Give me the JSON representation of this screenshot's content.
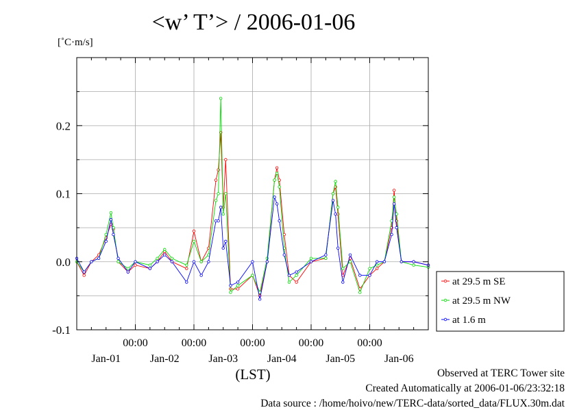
{
  "title": "<w’ T’> / 2006-01-06",
  "unit_label": "[˚C·m/s]",
  "footer": {
    "line1": "Observed at TERC Tower site",
    "line2": "Created Automatically at 2006-01-06/23:32:18",
    "line3": "Data source : /home/hoivo/new/TERC-data/sorted_data/FLUX.30m.dat"
  },
  "colors": {
    "series1": "#ff0000",
    "series2": "#00dd00",
    "series3": "#0000ff"
  },
  "chart_data": {
    "type": "line",
    "title": "<w’ T’> / 2006-01-06",
    "ylabel": "[˚C·m/s]",
    "xlabel": "(LST)",
    "xlim": [
      "2006-01-01 00:00",
      "2006-01-07 00:00"
    ],
    "ylim": [
      -0.1,
      0.3
    ],
    "y_ticks": [
      -0.1,
      0.0,
      0.1,
      0.2
    ],
    "y_tick_labels": [
      "-0.1",
      "0.0",
      "0.1",
      "0.2"
    ],
    "x_time_labels": [
      "00:00",
      "00:00",
      "00:00",
      "00:00",
      "00:00"
    ],
    "x_time_positions": [
      "2006-01-02 00:00",
      "2006-01-03 00:00",
      "2006-01-04 00:00",
      "2006-01-05 00:00",
      "2006-01-06 00:00"
    ],
    "x_date_labels": [
      "Jan-01",
      "Jan-02",
      "Jan-03",
      "Jan-04",
      "Jan-05",
      "Jan-06"
    ],
    "x_date_positions": [
      "2006-01-01 12:00",
      "2006-01-02 12:00",
      "2006-01-03 12:00",
      "2006-01-04 12:00",
      "2006-01-05 12:00",
      "2006-01-06 12:00"
    ],
    "grid": true,
    "legend_position": "right",
    "series": [
      {
        "name": "at 29.5 m SE",
        "color": "#ff0000",
        "points": [
          [
            "2006-01-01 00:00",
            0.0
          ],
          [
            "2006-01-01 03:00",
            -0.02
          ],
          [
            "2006-01-01 06:00",
            0.0
          ],
          [
            "2006-01-01 09:00",
            0.01
          ],
          [
            "2006-01-01 12:00",
            0.035
          ],
          [
            "2006-01-01 14:00",
            0.055
          ],
          [
            "2006-01-01 15:00",
            0.048
          ],
          [
            "2006-01-01 17:00",
            0.0
          ],
          [
            "2006-01-01 21:00",
            -0.015
          ],
          [
            "2006-01-02 00:00",
            -0.005
          ],
          [
            "2006-01-02 06:00",
            -0.01
          ],
          [
            "2006-01-02 09:00",
            0.0
          ],
          [
            "2006-01-02 12:00",
            0.015
          ],
          [
            "2006-01-02 15:00",
            0.0
          ],
          [
            "2006-01-02 21:00",
            -0.01
          ],
          [
            "2006-01-03 00:00",
            0.045
          ],
          [
            "2006-01-03 03:00",
            0.0
          ],
          [
            "2006-01-03 06:00",
            0.02
          ],
          [
            "2006-01-03 09:00",
            0.12
          ],
          [
            "2006-01-03 10:00",
            0.135
          ],
          [
            "2006-01-03 11:00",
            0.19
          ],
          [
            "2006-01-03 12:00",
            0.08
          ],
          [
            "2006-01-03 13:00",
            0.15
          ],
          [
            "2006-01-03 15:00",
            -0.04
          ],
          [
            "2006-01-03 18:00",
            -0.04
          ],
          [
            "2006-01-04 00:00",
            -0.02
          ],
          [
            "2006-01-04 03:00",
            -0.05
          ],
          [
            "2006-01-04 06:00",
            0.0
          ],
          [
            "2006-01-04 09:00",
            0.12
          ],
          [
            "2006-01-04 10:00",
            0.138
          ],
          [
            "2006-01-04 11:00",
            0.12
          ],
          [
            "2006-01-04 13:00",
            0.04
          ],
          [
            "2006-01-04 15:00",
            -0.02
          ],
          [
            "2006-01-04 18:00",
            -0.03
          ],
          [
            "2006-01-05 00:00",
            0.0
          ],
          [
            "2006-01-05 06:00",
            0.005
          ],
          [
            "2006-01-05 09:00",
            0.1
          ],
          [
            "2006-01-05 10:00",
            0.11
          ],
          [
            "2006-01-05 11:00",
            0.07
          ],
          [
            "2006-01-05 13:00",
            -0.02
          ],
          [
            "2006-01-05 16:00",
            0.005
          ],
          [
            "2006-01-05 20:00",
            -0.04
          ],
          [
            "2006-01-06 00:00",
            -0.02
          ],
          [
            "2006-01-06 03:00",
            -0.01
          ],
          [
            "2006-01-06 06:00",
            0.0
          ],
          [
            "2006-01-06 09:00",
            0.05
          ],
          [
            "2006-01-06 10:00",
            0.105
          ],
          [
            "2006-01-06 11:00",
            0.06
          ],
          [
            "2006-01-06 13:00",
            0.0
          ],
          [
            "2006-01-06 18:00",
            0.0
          ],
          [
            "2006-01-07 00:00",
            -0.005
          ]
        ]
      },
      {
        "name": "at 29.5 m NW",
        "color": "#00dd00",
        "points": [
          [
            "2006-01-01 00:00",
            0.0
          ],
          [
            "2006-01-01 03:00",
            -0.015
          ],
          [
            "2006-01-01 06:00",
            0.0
          ],
          [
            "2006-01-01 09:00",
            0.005
          ],
          [
            "2006-01-01 12:00",
            0.04
          ],
          [
            "2006-01-01 14:00",
            0.072
          ],
          [
            "2006-01-01 15:00",
            0.05
          ],
          [
            "2006-01-01 17:00",
            0.0
          ],
          [
            "2006-01-01 21:00",
            -0.01
          ],
          [
            "2006-01-02 00:00",
            0.0
          ],
          [
            "2006-01-02 06:00",
            -0.005
          ],
          [
            "2006-01-02 09:00",
            0.005
          ],
          [
            "2006-01-02 12:00",
            0.018
          ],
          [
            "2006-01-02 15:00",
            0.005
          ],
          [
            "2006-01-02 21:00",
            -0.005
          ],
          [
            "2006-01-03 00:00",
            0.03
          ],
          [
            "2006-01-03 03:00",
            0.0
          ],
          [
            "2006-01-03 06:00",
            0.01
          ],
          [
            "2006-01-03 09:00",
            0.09
          ],
          [
            "2006-01-03 10:00",
            0.1
          ],
          [
            "2006-01-03 11:00",
            0.24
          ],
          [
            "2006-01-03 12:00",
            0.07
          ],
          [
            "2006-01-03 13:00",
            0.1
          ],
          [
            "2006-01-03 15:00",
            -0.045
          ],
          [
            "2006-01-03 18:00",
            -0.035
          ],
          [
            "2006-01-04 00:00",
            -0.02
          ],
          [
            "2006-01-04 03:00",
            -0.045
          ],
          [
            "2006-01-04 06:00",
            0.005
          ],
          [
            "2006-01-04 09:00",
            0.12
          ],
          [
            "2006-01-04 10:00",
            0.13
          ],
          [
            "2006-01-04 11:00",
            0.11
          ],
          [
            "2006-01-04 13:00",
            0.02
          ],
          [
            "2006-01-04 15:00",
            -0.03
          ],
          [
            "2006-01-04 18:00",
            -0.02
          ],
          [
            "2006-01-05 00:00",
            0.005
          ],
          [
            "2006-01-05 06:00",
            0.005
          ],
          [
            "2006-01-05 09:00",
            0.1
          ],
          [
            "2006-01-05 10:00",
            0.118
          ],
          [
            "2006-01-05 11:00",
            0.08
          ],
          [
            "2006-01-05 13:00",
            -0.01
          ],
          [
            "2006-01-05 16:00",
            0.0
          ],
          [
            "2006-01-05 20:00",
            -0.045
          ],
          [
            "2006-01-06 00:00",
            -0.01
          ],
          [
            "2006-01-06 03:00",
            -0.005
          ],
          [
            "2006-01-06 06:00",
            0.0
          ],
          [
            "2006-01-06 09:00",
            0.06
          ],
          [
            "2006-01-06 10:00",
            0.095
          ],
          [
            "2006-01-06 11:00",
            0.07
          ],
          [
            "2006-01-06 13:00",
            0.0
          ],
          [
            "2006-01-06 18:00",
            -0.005
          ],
          [
            "2006-01-07 00:00",
            -0.008
          ]
        ]
      },
      {
        "name": "at 1.6 m",
        "color": "#0000ff",
        "points": [
          [
            "2006-01-01 00:00",
            0.005
          ],
          [
            "2006-01-01 03:00",
            -0.015
          ],
          [
            "2006-01-01 06:00",
            0.0
          ],
          [
            "2006-01-01 09:00",
            0.005
          ],
          [
            "2006-01-01 12:00",
            0.03
          ],
          [
            "2006-01-01 14:00",
            0.062
          ],
          [
            "2006-01-01 15:00",
            0.04
          ],
          [
            "2006-01-01 17:00",
            0.005
          ],
          [
            "2006-01-01 21:00",
            -0.015
          ],
          [
            "2006-01-02 00:00",
            0.0
          ],
          [
            "2006-01-02 06:00",
            -0.01
          ],
          [
            "2006-01-02 09:00",
            0.0
          ],
          [
            "2006-01-02 12:00",
            0.01
          ],
          [
            "2006-01-02 15:00",
            0.0
          ],
          [
            "2006-01-02 21:00",
            -0.03
          ],
          [
            "2006-01-03 00:00",
            0.0
          ],
          [
            "2006-01-03 03:00",
            -0.02
          ],
          [
            "2006-01-03 06:00",
            0.0
          ],
          [
            "2006-01-03 09:00",
            0.06
          ],
          [
            "2006-01-03 10:00",
            0.06
          ],
          [
            "2006-01-03 11:00",
            0.08
          ],
          [
            "2006-01-03 12:00",
            0.02
          ],
          [
            "2006-01-03 13:00",
            0.03
          ],
          [
            "2006-01-03 15:00",
            -0.035
          ],
          [
            "2006-01-03 18:00",
            -0.03
          ],
          [
            "2006-01-04 00:00",
            0.0
          ],
          [
            "2006-01-04 03:00",
            -0.055
          ],
          [
            "2006-01-04 06:00",
            0.0
          ],
          [
            "2006-01-04 09:00",
            0.095
          ],
          [
            "2006-01-04 10:00",
            0.085
          ],
          [
            "2006-01-04 11:00",
            0.06
          ],
          [
            "2006-01-04 13:00",
            0.01
          ],
          [
            "2006-01-04 15:00",
            -0.02
          ],
          [
            "2006-01-04 18:00",
            -0.015
          ],
          [
            "2006-01-05 00:00",
            0.0
          ],
          [
            "2006-01-05 06:00",
            0.01
          ],
          [
            "2006-01-05 09:00",
            0.09
          ],
          [
            "2006-01-05 10:00",
            0.07
          ],
          [
            "2006-01-05 11:00",
            0.02
          ],
          [
            "2006-01-05 13:00",
            -0.03
          ],
          [
            "2006-01-05 16:00",
            0.01
          ],
          [
            "2006-01-05 20:00",
            -0.02
          ],
          [
            "2006-01-06 00:00",
            -0.02
          ],
          [
            "2006-01-06 03:00",
            0.0
          ],
          [
            "2006-01-06 06:00",
            0.0
          ],
          [
            "2006-01-06 09:00",
            0.04
          ],
          [
            "2006-01-06 10:00",
            0.085
          ],
          [
            "2006-01-06 11:00",
            0.05
          ],
          [
            "2006-01-06 13:00",
            0.0
          ],
          [
            "2006-01-06 18:00",
            0.0
          ],
          [
            "2006-01-07 00:00",
            -0.005
          ]
        ]
      }
    ]
  }
}
